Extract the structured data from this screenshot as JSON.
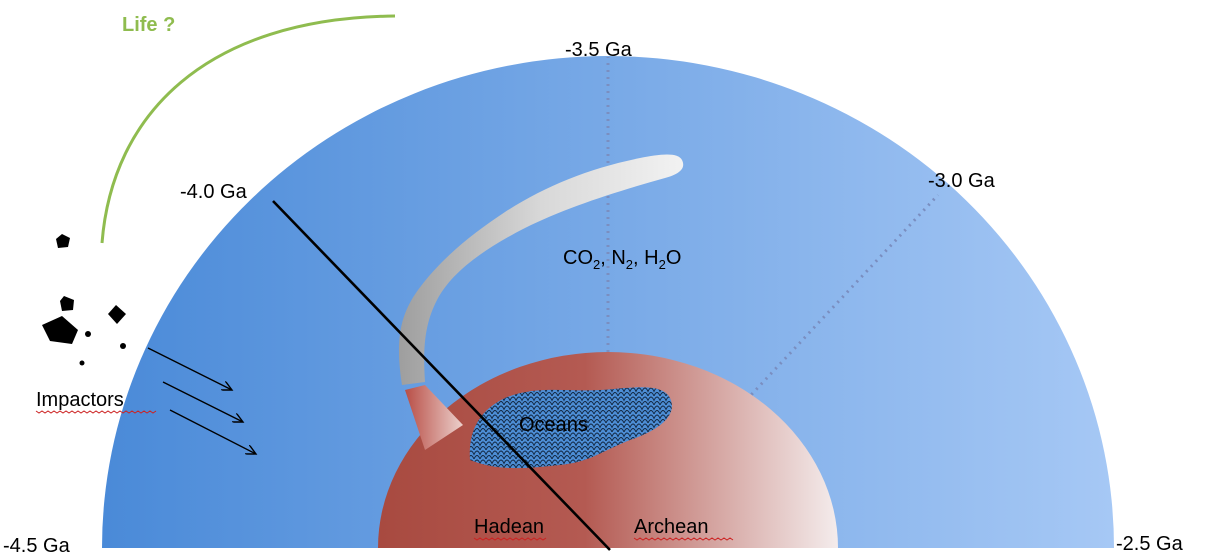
{
  "labels": {
    "life": "Life ?",
    "t_45": "-4.5 Ga",
    "t_40": "-4.0 Ga",
    "t_35": "-3.5 Ga",
    "t_30": "-3.0 Ga",
    "t_25": "-2.5 Ga",
    "gas_co": "CO",
    "gas_sub2a": "2",
    "gas_n": ", N",
    "gas_sub2b": "2",
    "gas_h": ", H",
    "gas_sub2c": "2",
    "gas_o": "O",
    "impactors": "Impactors",
    "oceans": "Oceans",
    "hadean": "Hadean",
    "archean": "Archean"
  },
  "colors": {
    "sky_dark": "#4a8ad8",
    "sky_light": "#a6c8f5",
    "earth_red": "#a84a40",
    "earth_light": "#f2e8e8",
    "ocean_blue": "#3d7fc8",
    "plume_gray": "#bdbdbd",
    "life_green": "#8fbc4f"
  }
}
